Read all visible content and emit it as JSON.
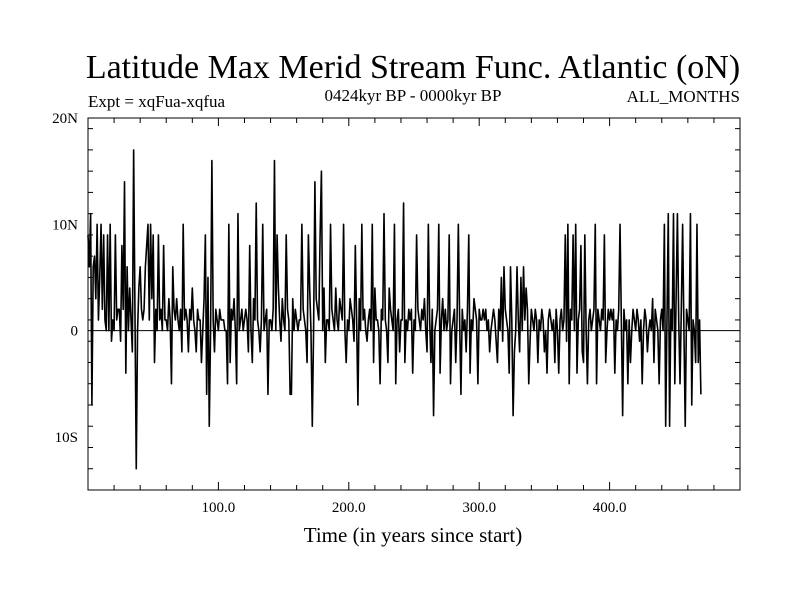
{
  "chart_data": {
    "type": "line",
    "title": "Latitude Max Merid Stream Func. Atlantic (oN)",
    "subtitle_left": "Expt = xqFua-xqfua",
    "subtitle_center": "0424kyr BP - 0000kyr BP",
    "subtitle_right": "ALL_MONTHS",
    "xlabel": "Time (in years since start)",
    "ylabel": "",
    "xlim": [
      0,
      500
    ],
    "ylim": [
      -15,
      20
    ],
    "x_ticks": [
      {
        "value": 100,
        "label": "100.0"
      },
      {
        "value": 200,
        "label": "200.0"
      },
      {
        "value": 300,
        "label": "300.0"
      },
      {
        "value": 400,
        "label": "400.0"
      }
    ],
    "y_ticks": [
      {
        "value": 20,
        "label": "20N"
      },
      {
        "value": 10,
        "label": "10N"
      },
      {
        "value": 0,
        "label": "0"
      },
      {
        "value": -10,
        "label": "10S"
      }
    ],
    "grid": false,
    "zero_line": true,
    "color": "#000000",
    "series": [
      {
        "x_start": 0,
        "x_step": 1,
        "values": [
          9,
          6,
          11,
          -7,
          6,
          7,
          3,
          10,
          1,
          5,
          10,
          2,
          9,
          1,
          0,
          9,
          0,
          10,
          -1,
          1,
          0,
          9,
          1,
          2,
          2,
          -1,
          8,
          2,
          14,
          -4,
          6,
          0,
          4,
          1,
          -2,
          17,
          2,
          -13,
          0,
          4,
          6,
          2,
          1,
          2,
          6,
          8,
          10,
          1,
          10,
          3,
          9,
          -3,
          2,
          0,
          9,
          1,
          2,
          0,
          8,
          1,
          1,
          0,
          3,
          1,
          -5,
          6,
          2,
          1,
          3,
          1,
          0,
          2,
          -2,
          10,
          1,
          2,
          1,
          -2,
          2,
          1,
          4,
          1,
          0,
          -2,
          2,
          1,
          1,
          -3,
          0,
          3,
          9,
          -6,
          5,
          -9,
          0,
          16,
          1,
          -2,
          2,
          1,
          0,
          2,
          1,
          1,
          1,
          0,
          0,
          -5,
          10,
          -3,
          2,
          1,
          3,
          0,
          -5,
          11,
          0,
          1,
          2,
          0,
          1,
          2,
          1,
          -2,
          8,
          0,
          -3,
          3,
          1,
          12,
          1,
          0,
          -2,
          1,
          10,
          0,
          1,
          2,
          -6,
          1,
          1,
          0,
          2,
          16,
          0,
          9,
          4,
          1,
          -1,
          3,
          1,
          0,
          9,
          2,
          1,
          -6,
          -6,
          3,
          0,
          2,
          1,
          0,
          1,
          1,
          10,
          2,
          1,
          0,
          -3,
          9,
          4,
          0,
          -9,
          0,
          14,
          3,
          2,
          1,
          9,
          15,
          0,
          4,
          -3,
          1,
          1,
          0,
          10,
          2,
          1,
          0,
          4,
          1,
          0,
          3,
          2,
          1,
          10,
          0,
          -3,
          1,
          0,
          3,
          2,
          1,
          -1,
          8,
          1,
          -7,
          3,
          0,
          10,
          1,
          2,
          0,
          -1,
          1,
          2,
          0,
          10,
          -3,
          4,
          1,
          1,
          0,
          -5,
          2,
          1,
          11,
          1,
          0,
          -3,
          4,
          2,
          1,
          0,
          10,
          -5,
          1,
          2,
          -2,
          1,
          1,
          12,
          -3,
          1,
          0,
          2,
          1,
          2,
          -4,
          1,
          0,
          9,
          2,
          1,
          0,
          2,
          1,
          3,
          0,
          -2,
          10,
          1,
          -3,
          2,
          -8,
          0,
          1,
          2,
          10,
          -4,
          1,
          3,
          0,
          2,
          0,
          1,
          9,
          -5,
          0,
          1,
          2,
          -3,
          1,
          10,
          1,
          -6,
          2,
          0,
          1,
          -2,
          2,
          9,
          -4,
          1,
          0,
          3,
          2,
          1,
          -5,
          2,
          1,
          1,
          2,
          1,
          2,
          0,
          1,
          -2,
          0,
          1,
          2,
          1,
          -1,
          -3,
          2,
          0,
          5,
          -1,
          6,
          2,
          1,
          0,
          -4,
          6,
          1,
          -8,
          -2,
          0,
          6,
          1,
          -2,
          5,
          0,
          6,
          1,
          4,
          2,
          -5,
          -1,
          2,
          1,
          0,
          2,
          1,
          -3,
          1,
          0,
          2,
          1,
          -2,
          0,
          -4,
          1,
          2,
          1,
          0,
          1,
          -3,
          2,
          0,
          -4,
          1,
          2,
          0,
          1,
          9,
          -1,
          10,
          -5,
          2,
          1,
          9,
          0,
          10,
          -4,
          1,
          2,
          8,
          -2,
          -3,
          9,
          0,
          -5,
          1,
          2,
          0,
          1,
          2,
          10,
          -5,
          2,
          1,
          0,
          2,
          1,
          9,
          -3,
          0,
          2,
          1,
          2,
          1,
          2,
          -4,
          1,
          0,
          2,
          10,
          1,
          -8,
          2,
          0,
          1,
          -5,
          1,
          -3,
          0,
          2,
          1,
          0,
          2,
          1,
          -1,
          1,
          -5,
          0,
          2,
          1,
          -2,
          0,
          1,
          0,
          3,
          -3,
          2,
          1,
          0,
          -5,
          1,
          2,
          0,
          10,
          -9,
          1,
          11,
          -9,
          2,
          0,
          11,
          -5,
          3,
          11,
          1,
          -5,
          2,
          10,
          0,
          -9,
          2,
          1,
          0,
          11,
          -7,
          1,
          0,
          -3,
          10,
          -3,
          1,
          -6
        ]
      }
    ]
  }
}
